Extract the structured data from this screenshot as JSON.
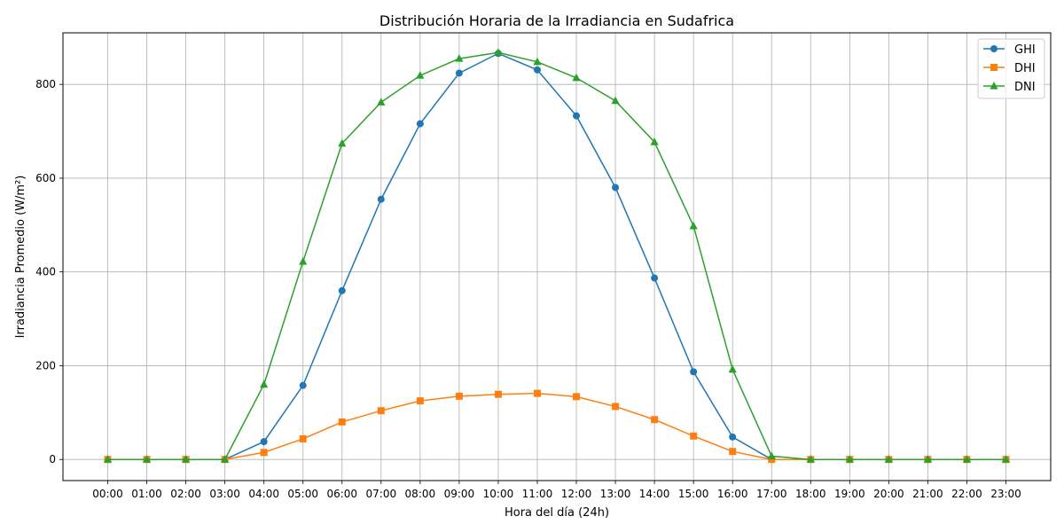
{
  "chart_data": {
    "type": "line",
    "title": "Distribución Horaria de la Irradiancia en Sudafrica",
    "xlabel": "Hora del día (24h)",
    "ylabel": "Irradiancia Promedio (W/m²)",
    "categories": [
      "00:00",
      "01:00",
      "02:00",
      "03:00",
      "04:00",
      "05:00",
      "06:00",
      "07:00",
      "08:00",
      "09:00",
      "10:00",
      "11:00",
      "12:00",
      "13:00",
      "14:00",
      "15:00",
      "16:00",
      "17:00",
      "18:00",
      "19:00",
      "20:00",
      "21:00",
      "22:00",
      "23:00"
    ],
    "ylim": [
      -45,
      910
    ],
    "yticks": [
      0,
      200,
      400,
      600,
      800
    ],
    "grid": true,
    "legend_position": "top-right",
    "series": [
      {
        "name": "GHI",
        "color": "#1f77b4",
        "marker": "circle",
        "values": [
          0,
          0,
          0,
          0,
          38,
          158,
          360,
          555,
          716,
          824,
          866,
          831,
          733,
          580,
          387,
          187,
          48,
          0,
          0,
          0,
          0,
          0,
          0,
          0
        ]
      },
      {
        "name": "DHI",
        "color": "#ff7f0e",
        "marker": "square",
        "values": [
          0,
          0,
          0,
          0,
          15,
          44,
          80,
          104,
          125,
          135,
          139,
          141,
          134,
          113,
          85,
          50,
          17,
          0,
          0,
          0,
          0,
          0,
          0,
          0
        ]
      },
      {
        "name": "DNI",
        "color": "#2ca02c",
        "marker": "triangle",
        "values": [
          0,
          0,
          0,
          0,
          160,
          422,
          674,
          762,
          819,
          855,
          868,
          848,
          814,
          765,
          677,
          498,
          192,
          7,
          0,
          0,
          0,
          0,
          0,
          0
        ]
      }
    ]
  }
}
